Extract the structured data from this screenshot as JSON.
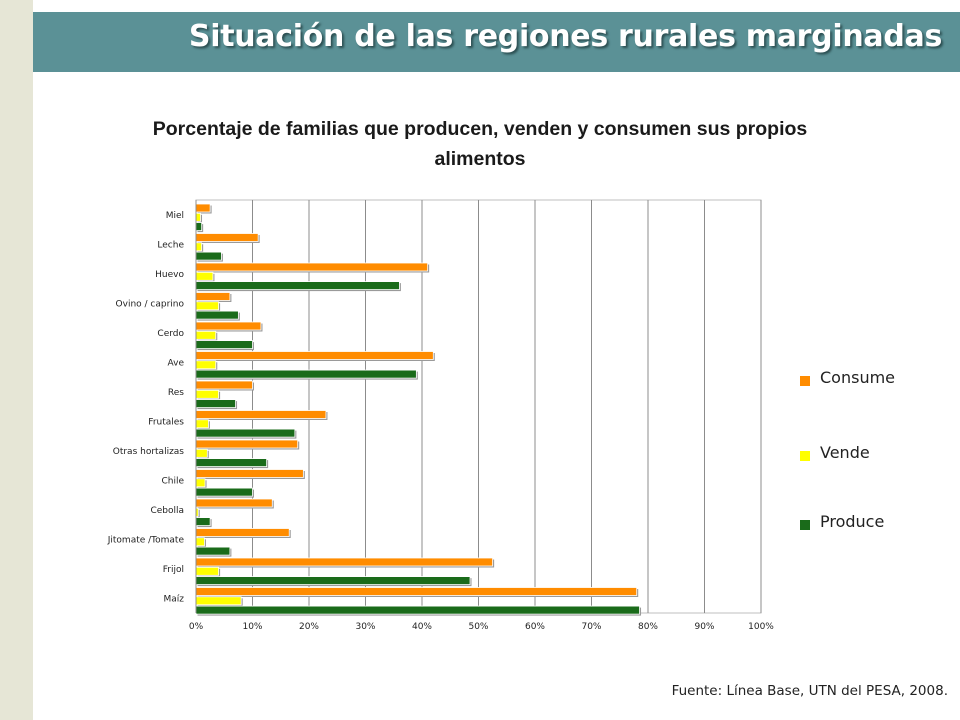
{
  "slide": {
    "title": "Situación de las regiones rurales marginadas",
    "source": "Fuente: Línea Base, UTN del PESA, 2008."
  },
  "colors": {
    "title_bar": "#5b9196",
    "consume": "#ff8c00",
    "vende": "#ffff00",
    "produce": "#1a6b1a"
  },
  "chart_data": {
    "type": "bar",
    "orientation": "horizontal",
    "title": "Porcentaje de familias que producen, venden y consumen sus propios alimentos",
    "categories": [
      "Miel",
      "Leche",
      "Huevo",
      "Ovino / caprino",
      "Cerdo",
      "Ave",
      "Res",
      "Frutales",
      "Otras hortalizas",
      "Chile",
      "Cebolla",
      "Jitomate /Tomate",
      "Frijol",
      "Maíz"
    ],
    "series": [
      {
        "name": "Consume",
        "color": "#ff8c00",
        "values": [
          2.5,
          11,
          41,
          6,
          11.5,
          42,
          10,
          23,
          18,
          19,
          13.5,
          16.5,
          52.5,
          78
        ]
      },
      {
        "name": "Vende",
        "color": "#ffff00",
        "values": [
          0.8,
          1,
          3,
          4,
          3.5,
          3.5,
          4,
          2.2,
          2,
          1.6,
          0.4,
          1.5,
          4,
          8
        ]
      },
      {
        "name": "Produce",
        "color": "#1a6b1a",
        "values": [
          1,
          4.5,
          36,
          7.5,
          10,
          39,
          7,
          17.5,
          12.5,
          10,
          2.5,
          6,
          48.5,
          78.5
        ]
      }
    ],
    "xlim": [
      0,
      100
    ],
    "x_ticks": [
      "0%",
      "10%",
      "20%",
      "30%",
      "40%",
      "50%",
      "60%",
      "70%",
      "80%",
      "90%",
      "100%"
    ],
    "grid": "vertical",
    "legend": {
      "position": "right",
      "entries": [
        "Consume",
        "Vende",
        "Produce"
      ]
    }
  }
}
